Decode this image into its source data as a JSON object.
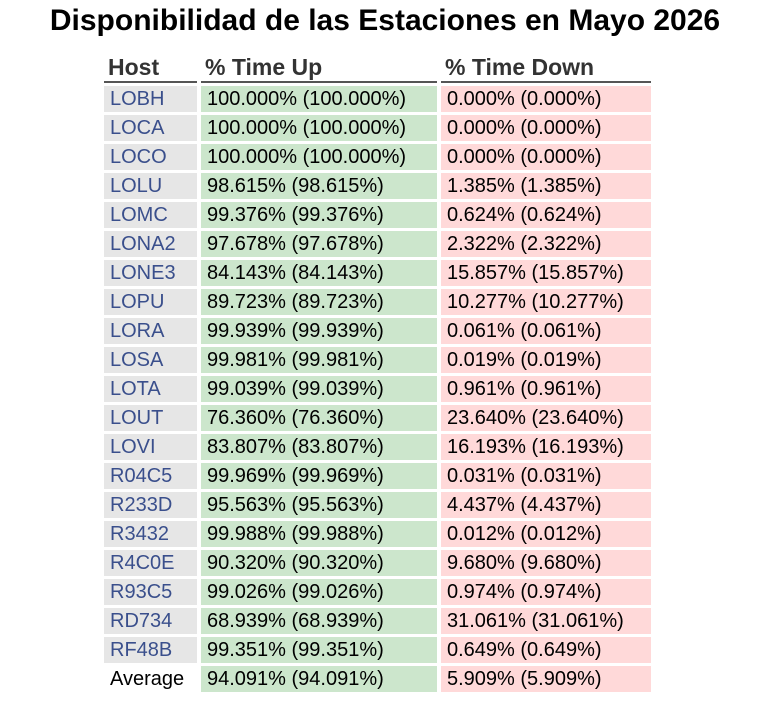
{
  "title": "Disponibilidad de las Estaciones en Mayo 2026",
  "columns": {
    "host": "Host",
    "up": "% Time Up",
    "down": "% Time Down"
  },
  "rows": [
    {
      "host": "LOBH",
      "up": "100.000% (100.000%)",
      "down": "0.000% (0.000%)"
    },
    {
      "host": "LOCA",
      "up": "100.000% (100.000%)",
      "down": "0.000% (0.000%)"
    },
    {
      "host": "LOCO",
      "up": "100.000% (100.000%)",
      "down": "0.000% (0.000%)"
    },
    {
      "host": "LOLU",
      "up": "98.615% (98.615%)",
      "down": "1.385% (1.385%)"
    },
    {
      "host": "LOMC",
      "up": "99.376% (99.376%)",
      "down": "0.624% (0.624%)"
    },
    {
      "host": "LONA2",
      "up": "97.678% (97.678%)",
      "down": "2.322% (2.322%)"
    },
    {
      "host": "LONE3",
      "up": "84.143% (84.143%)",
      "down": "15.857% (15.857%)"
    },
    {
      "host": "LOPU",
      "up": "89.723% (89.723%)",
      "down": "10.277% (10.277%)"
    },
    {
      "host": "LORA",
      "up": "99.939% (99.939%)",
      "down": "0.061% (0.061%)"
    },
    {
      "host": "LOSA",
      "up": "99.981% (99.981%)",
      "down": "0.019% (0.019%)"
    },
    {
      "host": "LOTA",
      "up": "99.039% (99.039%)",
      "down": "0.961% (0.961%)"
    },
    {
      "host": "LOUT",
      "up": "76.360% (76.360%)",
      "down": "23.640% (23.640%)"
    },
    {
      "host": "LOVI",
      "up": "83.807% (83.807%)",
      "down": "16.193% (16.193%)"
    },
    {
      "host": "R04C5",
      "up": "99.969% (99.969%)",
      "down": "0.031% (0.031%)"
    },
    {
      "host": "R233D",
      "up": "95.563% (95.563%)",
      "down": "4.437% (4.437%)"
    },
    {
      "host": "R3432",
      "up": "99.988% (99.988%)",
      "down": "0.012% (0.012%)"
    },
    {
      "host": "R4C0E",
      "up": "90.320% (90.320%)",
      "down": "9.680% (9.680%)"
    },
    {
      "host": "R93C5",
      "up": "99.026% (99.026%)",
      "down": "0.974% (0.974%)"
    },
    {
      "host": "RD734",
      "up": "68.939% (68.939%)",
      "down": "31.061% (31.061%)"
    },
    {
      "host": "RF48B",
      "up": "99.351% (99.351%)",
      "down": "0.649% (0.649%)"
    }
  ],
  "average": {
    "label": "Average",
    "up": "94.091% (94.091%)",
    "down": "5.909% (5.909%)"
  },
  "colors": {
    "host_link": "#3a4f8c",
    "host_bg": "#e6e6e6",
    "up_bg": "#cce6cc",
    "down_bg": "#ffd9d9"
  }
}
